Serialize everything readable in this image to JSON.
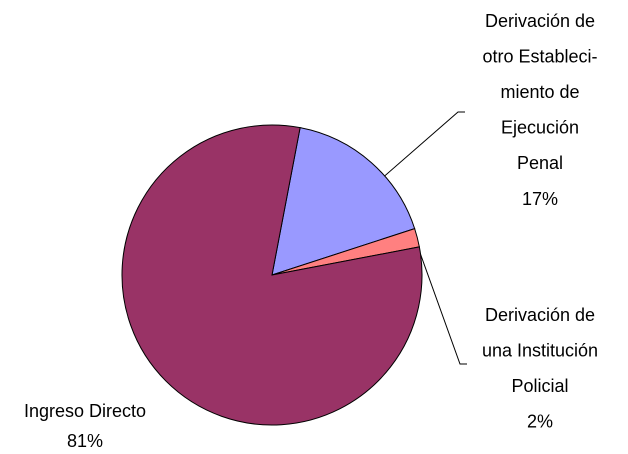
{
  "chart_data": {
    "type": "pie",
    "categories": [
      [
        "Derivación de",
        "otro Estableci-",
        "miento de",
        "Ejecución",
        "Penal"
      ],
      [
        "Derivación de",
        "una Institución",
        "Policial"
      ],
      [
        "Ingreso Directo"
      ]
    ],
    "values": [
      17,
      2,
      81
    ],
    "value_labels": [
      "17%",
      "2%",
      "81%"
    ],
    "colors": [
      "#9999ff",
      "#ff8080",
      "#993366"
    ]
  }
}
